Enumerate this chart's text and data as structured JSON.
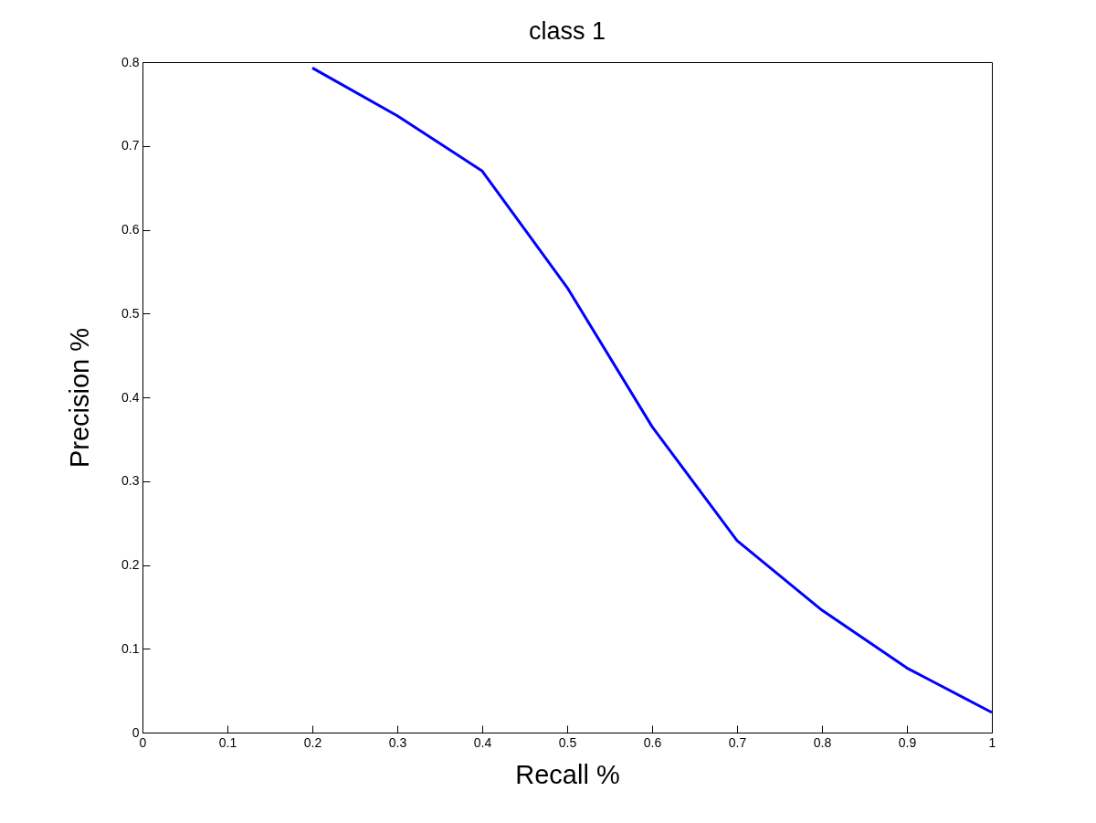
{
  "chart_data": {
    "type": "line",
    "title": "class 1",
    "xlabel": "Recall %",
    "ylabel": "Precision %",
    "x": [
      0.2,
      0.3,
      0.4,
      0.5,
      0.6,
      0.7,
      0.8,
      0.9,
      1.0
    ],
    "series": [
      {
        "color": "#0000ff",
        "values": [
          0.793,
          0.736,
          0.67,
          0.531,
          0.365,
          0.229,
          0.146,
          0.077,
          0.024
        ]
      }
    ],
    "xlim": [
      0,
      1
    ],
    "xticks": [
      0,
      0.1,
      0.2,
      0.3,
      0.4,
      0.5,
      0.6,
      0.7,
      0.8,
      0.9,
      1
    ],
    "ylim": [
      0,
      0.8
    ],
    "yticks": [
      0,
      0.1,
      0.2,
      0.3,
      0.4,
      0.5,
      0.6,
      0.7,
      0.8
    ],
    "grid": false,
    "marker": "none",
    "line_style": "solid"
  }
}
